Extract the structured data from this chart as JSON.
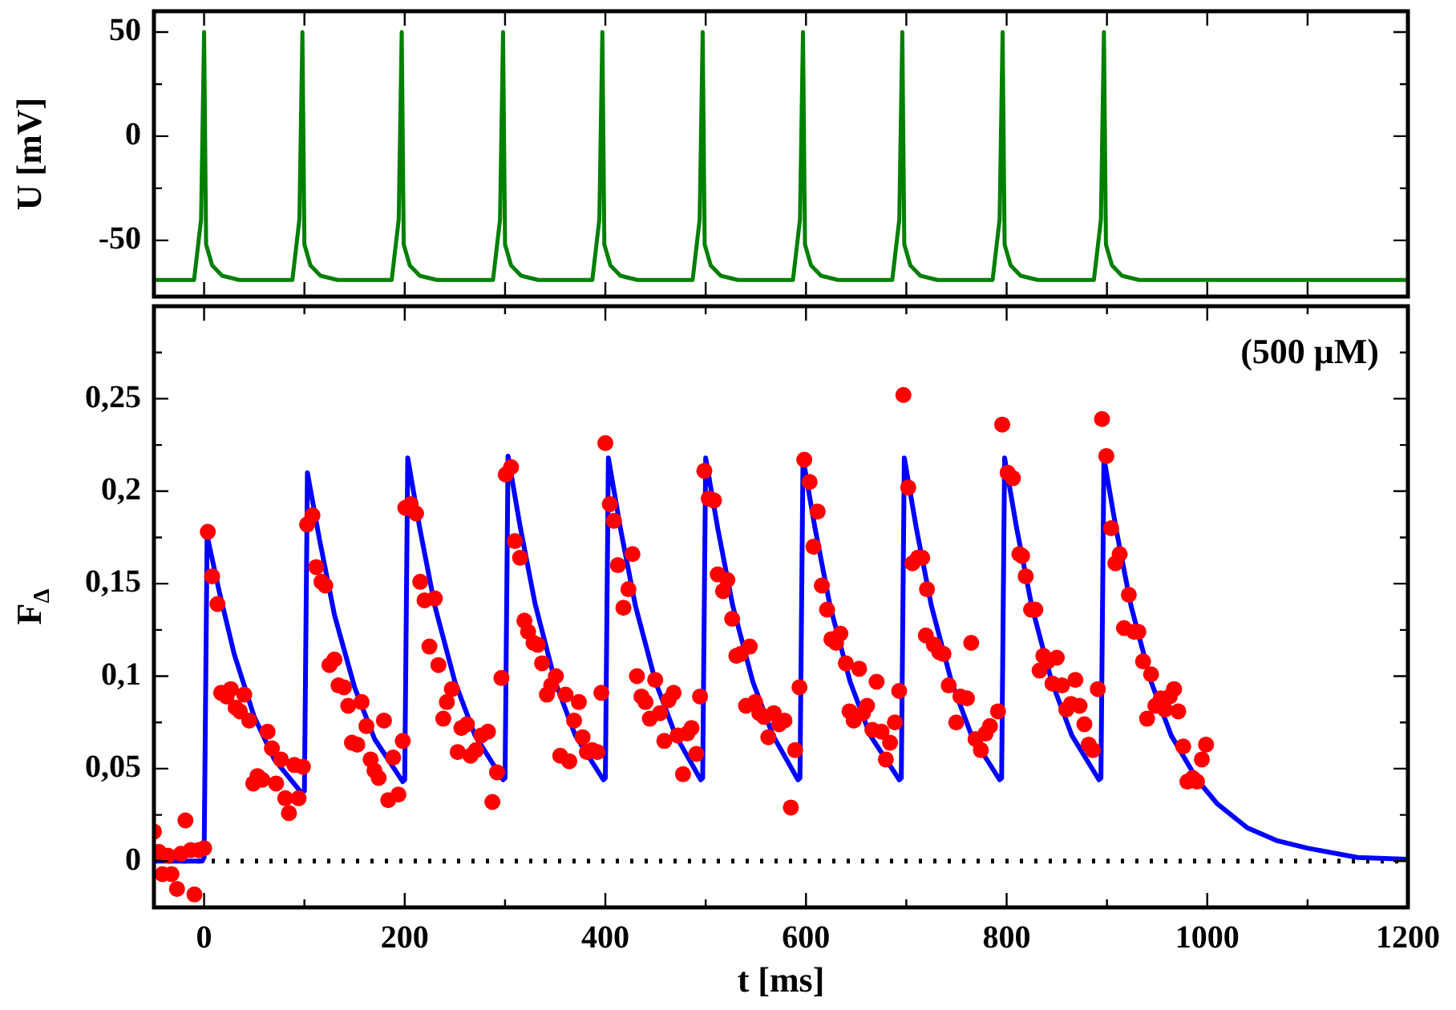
{
  "chart_data": [
    {
      "type": "line",
      "ylabel": "U [mV]",
      "xlim": [
        -50,
        1200
      ],
      "xticks": [
        0,
        100,
        200,
        300,
        400,
        500,
        600,
        700,
        800,
        900,
        1000,
        1100,
        1200
      ],
      "ylim": [
        -77,
        60
      ],
      "yticks": [
        -50,
        {
          "value": -25,
          "label": null
        },
        0,
        {
          "value": 25,
          "label": null
        },
        50
      ],
      "tick_labels": "y",
      "x": [
        -50,
        -10,
        -3,
        0,
        2,
        8,
        18,
        35,
        88,
        95,
        98,
        100,
        106,
        116,
        133,
        187,
        194,
        197,
        199,
        205,
        215,
        232,
        288,
        295,
        298,
        300,
        306,
        316,
        333,
        387,
        394,
        397,
        399,
        405,
        415,
        432,
        487,
        494,
        497,
        499,
        505,
        515,
        532,
        587,
        594,
        597,
        599,
        605,
        615,
        632,
        686,
        693,
        696,
        698,
        704,
        714,
        731,
        786,
        793,
        796,
        798,
        804,
        814,
        831,
        887,
        894,
        897,
        899,
        905,
        915,
        932,
        1200
      ],
      "series": [
        {
          "color": "#008000",
          "values": [
            -69,
            -69,
            -40,
            50,
            -52,
            -62,
            -67,
            -69,
            -69,
            -40,
            50,
            -52,
            -62,
            -67,
            -69,
            -69,
            -40,
            50,
            -52,
            -62,
            -67,
            -69,
            -69,
            -40,
            50,
            -52,
            -62,
            -67,
            -69,
            -69,
            -40,
            50,
            -52,
            -62,
            -67,
            -69,
            -69,
            -40,
            50,
            -52,
            -62,
            -67,
            -69,
            -69,
            -40,
            50,
            -52,
            -62,
            -67,
            -69,
            -69,
            -40,
            50,
            -52,
            -62,
            -67,
            -69,
            -69,
            -40,
            50,
            -52,
            -62,
            -67,
            -69,
            -69,
            -40,
            50,
            -52,
            -62,
            -67,
            -69,
            -69
          ]
        }
      ]
    },
    {
      "type": "line",
      "xlabel": "t [ms]",
      "ylabel": "F$_{Δ}$",
      "annotations": [
        "(500 μM)"
      ],
      "xlim": [
        -50,
        1200
      ],
      "xticks": [
        0,
        {
          "value": 100,
          "label": null
        },
        200,
        {
          "value": 300,
          "label": null
        },
        400,
        {
          "value": 500,
          "label": null
        },
        600,
        {
          "value": 700,
          "label": null
        },
        800,
        {
          "value": 900,
          "label": null
        },
        1000,
        {
          "value": 1100,
          "label": null
        },
        1200
      ],
      "ylim": [
        -0.025,
        0.3
      ],
      "yticks": [
        0,
        {
          "value": 0.025,
          "label": null
        },
        {
          "value": 0.05,
          "label": "0,05"
        },
        {
          "value": 0.075,
          "label": null
        },
        {
          "value": 0.1,
          "label": "0,1"
        },
        {
          "value": 0.125,
          "label": null
        },
        {
          "value": 0.15,
          "label": "0,15"
        },
        {
          "value": 0.175,
          "label": null
        },
        {
          "value": 0.2,
          "label": "0,2"
        },
        {
          "value": 0.225,
          "label": null
        },
        {
          "value": 0.25,
          "label": "0,25"
        },
        {
          "value": 0.275,
          "label": null
        }
      ],
      "ref_lines": [
        {
          "axis": "y",
          "value": 0,
          "color": "#000000",
          "line_style": "dotted"
        }
      ],
      "series": [
        {
          "type": "scatter",
          "color": "#ff0000",
          "marker": "circle",
          "x": [
            -50,
            -45,
            -41.5,
            -36,
            -32.5,
            -27,
            -23,
            -18.6,
            -13.3,
            -9.6,
            -5.3,
            0,
            3.7,
            8,
            13.3,
            17,
            22.4,
            26.6,
            31.4,
            35.7,
            40,
            45,
            49,
            53.2,
            58,
            63.3,
            67.6,
            71.8,
            76.6,
            80.9,
            84.6,
            90,
            94.2,
            98.5,
            102.7,
            108,
            111.8,
            117,
            120.8,
            125,
            129.9,
            134,
            139.4,
            143.7,
            147.4,
            152.7,
            157,
            161.8,
            166,
            169.8,
            174,
            179.3,
            183.6,
            188.4,
            193.7,
            198,
            200.6,
            206,
            211.3,
            215.5,
            219.8,
            224.6,
            230,
            233.6,
            238.4,
            242,
            247,
            252.8,
            256.5,
            262,
            265.6,
            271,
            276.3,
            283,
            287.4,
            292,
            296.4,
            300.7,
            306,
            309.7,
            315,
            319.3,
            323,
            328.4,
            332.6,
            336.9,
            341.7,
            346,
            350.7,
            355,
            360.3,
            364,
            368.8,
            373.6,
            377.3,
            381.6,
            387,
            392,
            396,
            400,
            404.5,
            408.5,
            412.5,
            418,
            423,
            427,
            431.5,
            436,
            440,
            444.3,
            449.7,
            454.5,
            458.8,
            463,
            468,
            472,
            477.4,
            481.6,
            485.9,
            490.7,
            494.4,
            498.7,
            503,
            508.3,
            512,
            517.3,
            521.6,
            526.4,
            530.6,
            534.9,
            540.2,
            543.9,
            549.3,
            553.5,
            558.3,
            562.5,
            567.9,
            573.2,
            578.5,
            584.9,
            589.2,
            593.5,
            598.3,
            603.6,
            607.4,
            611.6,
            615.8,
            621,
            625.3,
            630,
            634.3,
            639.7,
            643.4,
            647.6,
            653,
            656.7,
            660.9,
            666.2,
            670.4,
            675.3,
            679.6,
            683.8,
            688.6,
            692.9,
            697.1,
            701.9,
            706.1,
            711.5,
            715.8,
            719.5,
            720.6,
            727.5,
            732.8,
            737,
            742.3,
            749.8,
            754,
            760.5,
            764.7,
            769,
            774.3,
            779,
            783.4,
            791.4,
            795.6,
            801,
            806.3,
            812.7,
            815.4,
            819,
            824.4,
            828.6,
            832.9,
            836.6,
            840.9,
            845.7,
            850,
            855.2,
            859.5,
            864.2,
            868.5,
            872.7,
            877.5,
            881.8,
            886,
            890.9,
            895.1,
            899.4,
            904.2,
            908.4,
            912.7,
            917,
            921.8,
            927,
            931.3,
            936,
            940,
            944,
            948.3,
            953.6,
            957.8,
            962.6,
            966.9,
            971.1,
            976,
            980.2,
            985.5,
            989.8,
            994.6,
            998.8
          ],
          "values": [
            0.016,
            0.005,
            -0.007,
            0.003,
            -0.007,
            -0.015,
            0.004,
            0.022,
            0.006,
            -0.018,
            0.006,
            0.007,
            0.178,
            0.154,
            0.139,
            0.091,
            0.089,
            0.093,
            0.083,
            0.081,
            0.09,
            0.076,
            0.042,
            0.046,
            0.044,
            0.07,
            0.061,
            0.042,
            0.055,
            0.034,
            0.026,
            0.052,
            0.034,
            0.051,
            0.182,
            0.187,
            0.159,
            0.151,
            0.149,
            0.106,
            0.109,
            0.095,
            0.094,
            0.084,
            0.064,
            0.063,
            0.086,
            0.073,
            0.055,
            0.049,
            0.045,
            0.076,
            0.033,
            0.056,
            0.036,
            0.065,
            0.191,
            0.193,
            0.188,
            0.151,
            0.141,
            0.116,
            0.142,
            0.106,
            0.077,
            0.086,
            0.093,
            0.059,
            0.072,
            0.074,
            0.057,
            0.06,
            0.068,
            0.07,
            0.032,
            0.048,
            0.099,
            0.209,
            0.213,
            0.173,
            0.164,
            0.13,
            0.124,
            0.118,
            0.117,
            0.107,
            0.09,
            0.095,
            0.1,
            0.057,
            0.09,
            0.054,
            0.076,
            0.086,
            0.067,
            0.059,
            0.06,
            0.059,
            0.091,
            0.226,
            0.193,
            0.184,
            0.16,
            0.137,
            0.147,
            0.166,
            0.1,
            0.089,
            0.086,
            0.077,
            0.098,
            0.08,
            0.065,
            0.087,
            0.091,
            0.068,
            0.047,
            0.069,
            0.072,
            0.058,
            0.089,
            0.211,
            0.196,
            0.195,
            0.155,
            0.146,
            0.152,
            0.131,
            0.111,
            0.112,
            0.084,
            0.116,
            0.086,
            0.08,
            0.078,
            0.067,
            0.08,
            0.074,
            0.076,
            0.029,
            0.06,
            0.094,
            0.217,
            0.205,
            0.17,
            0.189,
            0.149,
            0.136,
            0.12,
            0.118,
            0.123,
            0.107,
            0.081,
            0.076,
            0.104,
            0.08,
            0.084,
            0.071,
            0.097,
            0.07,
            0.055,
            0.064,
            0.075,
            0.092,
            0.252,
            0.202,
            0.161,
            0.164,
            0.164,
            0.122,
            0.147,
            0.117,
            0.113,
            0.112,
            0.095,
            0.075,
            0.089,
            0.088,
            0.118,
            0.066,
            0.06,
            0.069,
            0.073,
            0.081,
            0.236,
            0.21,
            0.207,
            0.166,
            0.165,
            0.154,
            0.136,
            0.136,
            0.103,
            0.111,
            0.108,
            0.096,
            0.11,
            0.095,
            0.082,
            0.085,
            0.098,
            0.084,
            0.074,
            0.063,
            0.06,
            0.093,
            0.239,
            0.219,
            0.18,
            0.161,
            0.166,
            0.126,
            0.144,
            0.124,
            0.124,
            0.108,
            0.077,
            0.101,
            0.084,
            0.088,
            0.082,
            0.089,
            0.093,
            0.081,
            0.062,
            0.043,
            0.045,
            0.043,
            0.055,
            0.063
          ]
        },
        {
          "type": "line",
          "color": "#0000ff",
          "x": [
            -50,
            -2,
            0,
            3,
            15,
            30,
            50,
            70,
            97,
            100,
            103,
            115,
            130,
            150,
            170,
            198,
            200,
            203,
            215,
            230,
            250,
            270,
            298,
            300,
            303,
            315,
            330,
            350,
            370,
            398,
            400,
            403,
            415,
            430,
            450,
            470,
            495,
            497,
            500,
            512,
            527,
            547,
            567,
            592,
            594,
            597,
            609,
            624,
            644,
            664,
            693,
            695,
            698,
            710,
            725,
            745,
            765,
            793,
            795,
            798,
            810,
            825,
            845,
            865,
            892,
            894,
            897,
            909,
            924,
            944,
            964,
            990,
            1010,
            1040,
            1070,
            1100,
            1150,
            1200
          ],
          "values": [
            0,
            0,
            0.002,
            0.176,
            0.146,
            0.112,
            0.078,
            0.055,
            0.037,
            0.038,
            0.21,
            0.174,
            0.133,
            0.094,
            0.066,
            0.043,
            0.044,
            0.218,
            0.18,
            0.138,
            0.097,
            0.068,
            0.044,
            0.045,
            0.219,
            0.181,
            0.139,
            0.097,
            0.068,
            0.044,
            0.045,
            0.218,
            0.18,
            0.138,
            0.097,
            0.068,
            0.044,
            0.045,
            0.218,
            0.18,
            0.138,
            0.097,
            0.068,
            0.044,
            0.045,
            0.218,
            0.18,
            0.138,
            0.097,
            0.068,
            0.044,
            0.045,
            0.218,
            0.18,
            0.138,
            0.097,
            0.068,
            0.044,
            0.045,
            0.218,
            0.18,
            0.138,
            0.097,
            0.068,
            0.044,
            0.045,
            0.218,
            0.18,
            0.138,
            0.097,
            0.068,
            0.044,
            0.031,
            0.018,
            0.011,
            0.007,
            0.002,
            0.001
          ]
        }
      ]
    }
  ]
}
